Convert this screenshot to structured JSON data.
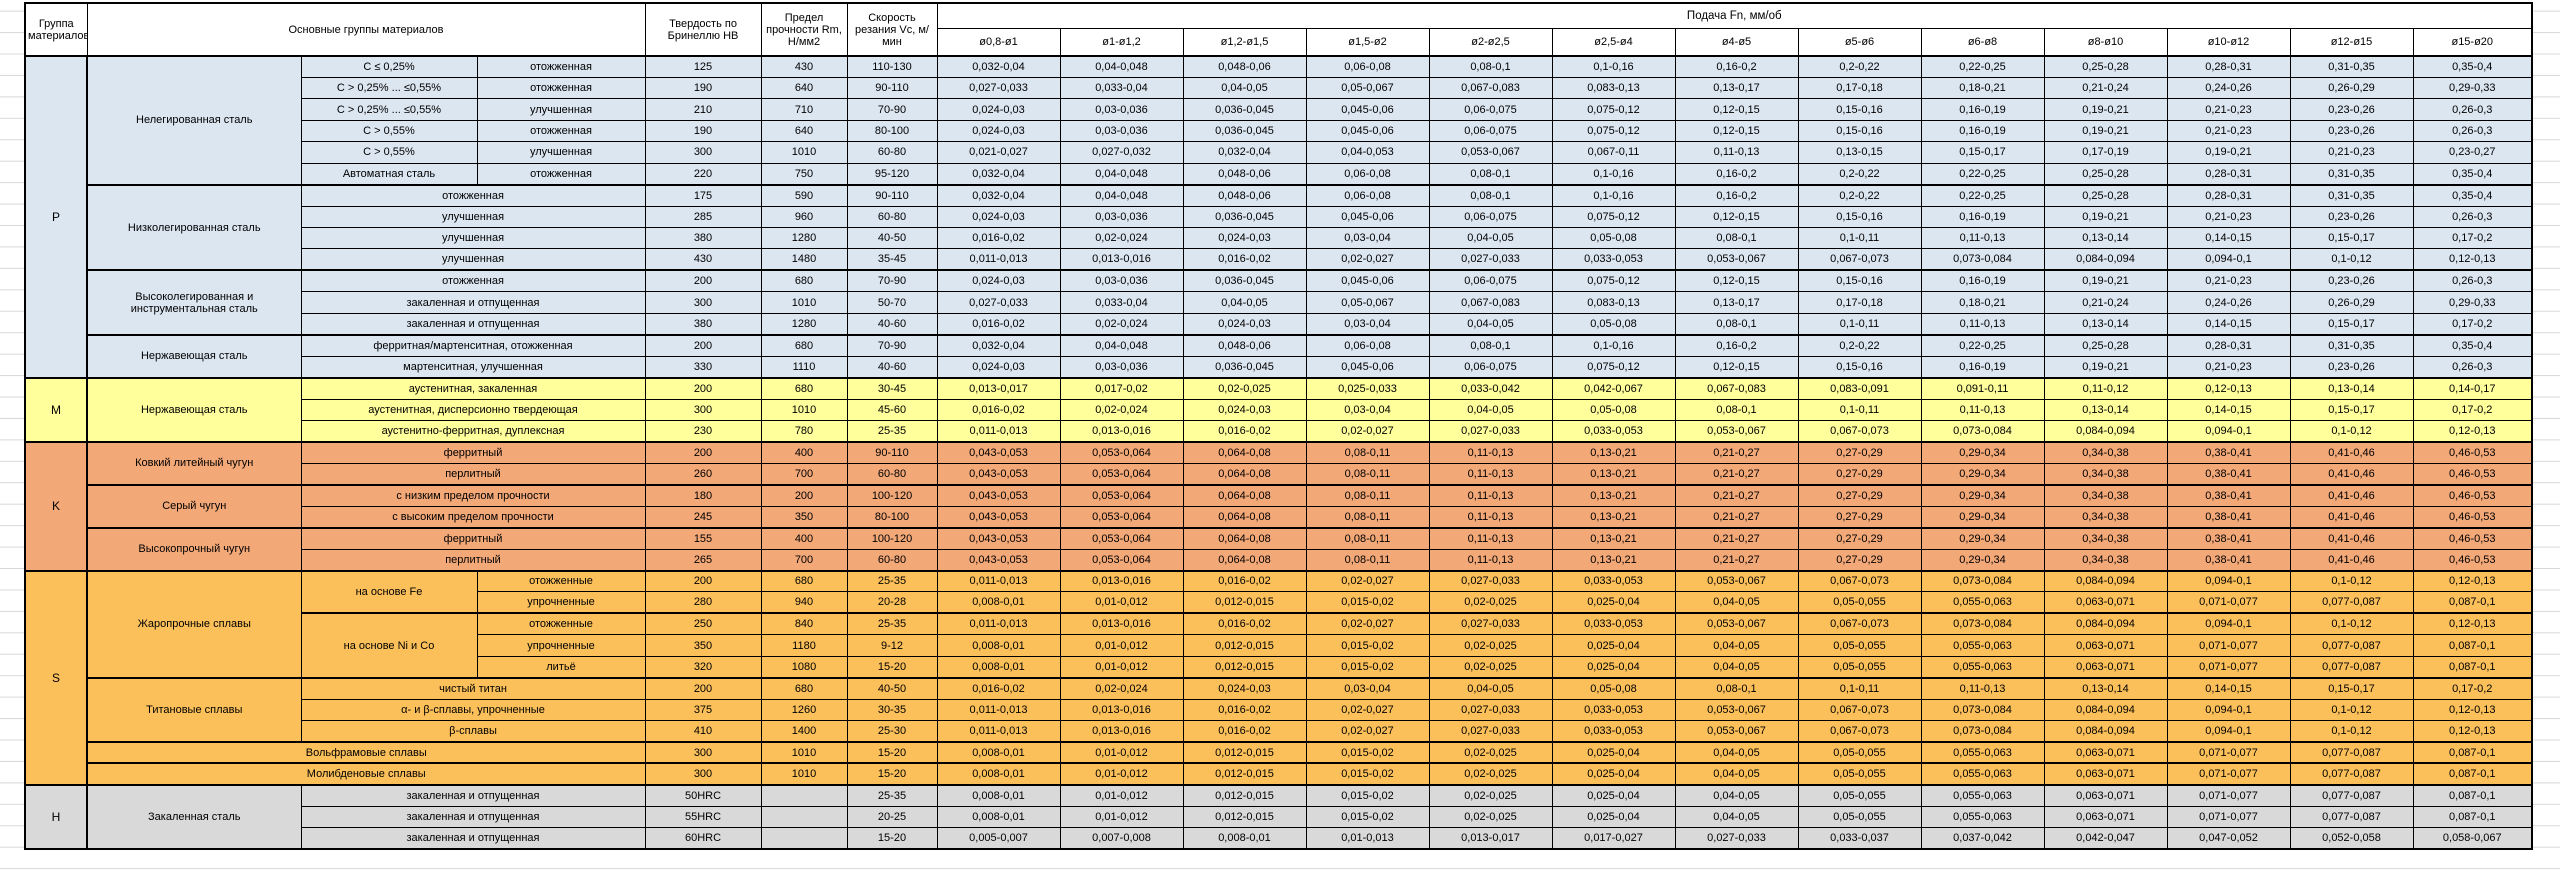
{
  "header": {
    "col_group": "Группа материалов",
    "col_main": "Основные группы материалов",
    "col_hb": "Твердость по Бринеллю HB",
    "col_rm": "Предел прочности Rm, Н/мм2",
    "col_vc": "Скорость резания Vc, м/мин",
    "feed_title": "Подача Fn, мм/об",
    "feed_cols": [
      "ø0,8-ø1",
      "ø1-ø1,2",
      "ø1,2-ø1,5",
      "ø1,5-ø2",
      "ø2-ø2,5",
      "ø2,5-ø4",
      "ø4-ø5",
      "ø5-ø6",
      "ø6-ø8",
      "ø8-ø10",
      "ø10-ø12",
      "ø12-ø15",
      "ø15-ø20"
    ]
  },
  "colors": {
    "section_p": "#dce6f1",
    "section_m": "#ffff9c",
    "section_k": "#f3a878",
    "section_s": "#fcc05b",
    "section_h": "#d9d9d9",
    "border": "#000000",
    "gridline": "#d8d8d8"
  },
  "feed_types": {
    "A": [
      "0,032-0,04",
      "0,04-0,048",
      "0,048-0,06",
      "0,06-0,08",
      "0,08-0,1",
      "0,1-0,16",
      "0,16-0,2",
      "0,2-0,22",
      "0,22-0,25",
      "0,25-0,28",
      "0,28-0,31",
      "0,31-0,35",
      "0,35-0,4"
    ],
    "B": [
      "0,027-0,033",
      "0,033-0,04",
      "0,04-0,05",
      "0,05-0,067",
      "0,067-0,083",
      "0,083-0,13",
      "0,13-0,17",
      "0,17-0,18",
      "0,18-0,21",
      "0,21-0,24",
      "0,24-0,26",
      "0,26-0,29",
      "0,29-0,33"
    ],
    "C": [
      "0,024-0,03",
      "0,03-0,036",
      "0,036-0,045",
      "0,045-0,06",
      "0,06-0,075",
      "0,075-0,12",
      "0,12-0,15",
      "0,15-0,16",
      "0,16-0,19",
      "0,19-0,21",
      "0,21-0,23",
      "0,23-0,26",
      "0,26-0,3"
    ],
    "D": [
      "0,021-0,027",
      "0,027-0,032",
      "0,032-0,04",
      "0,04-0,053",
      "0,053-0,067",
      "0,067-0,11",
      "0,11-0,13",
      "0,13-0,15",
      "0,15-0,17",
      "0,17-0,19",
      "0,19-0,21",
      "0,21-0,23",
      "0,23-0,27"
    ],
    "E": [
      "0,016-0,02",
      "0,02-0,024",
      "0,024-0,03",
      "0,03-0,04",
      "0,04-0,05",
      "0,05-0,08",
      "0,08-0,1",
      "0,1-0,11",
      "0,11-0,13",
      "0,13-0,14",
      "0,14-0,15",
      "0,15-0,17",
      "0,17-0,2"
    ],
    "F": [
      "0,011-0,013",
      "0,013-0,016",
      "0,016-0,02",
      "0,02-0,027",
      "0,027-0,033",
      "0,033-0,053",
      "0,053-0,067",
      "0,067-0,073",
      "0,073-0,084",
      "0,084-0,094",
      "0,094-0,1",
      "0,1-0,12",
      "0,12-0,13"
    ],
    "G": [
      "0,013-0,017",
      "0,017-0,02",
      "0,02-0,025",
      "0,025-0,033",
      "0,033-0,042",
      "0,042-0,067",
      "0,067-0,083",
      "0,083-0,091",
      "0,091-0,11",
      "0,11-0,12",
      "0,12-0,13",
      "0,13-0,14",
      "0,14-0,17"
    ],
    "H": [
      "0,043-0,053",
      "0,053-0,064",
      "0,064-0,08",
      "0,08-0,11",
      "0,11-0,13",
      "0,13-0,21",
      "0,21-0,27",
      "0,27-0,29",
      "0,29-0,34",
      "0,34-0,38",
      "0,38-0,41",
      "0,41-0,46",
      "0,46-0,53"
    ],
    "I": [
      "0,008-0,01",
      "0,01-0,012",
      "0,012-0,015",
      "0,015-0,02",
      "0,02-0,025",
      "0,025-0,04",
      "0,04-0,05",
      "0,05-0,055",
      "0,055-0,063",
      "0,063-0,071",
      "0,071-0,077",
      "0,077-0,087",
      "0,087-0,1"
    ],
    "J": [
      "0,005-0,007",
      "0,007-0,008",
      "0,008-0,01",
      "0,01-0,013",
      "0,013-0,017",
      "0,017-0,027",
      "0,027-0,033",
      "0,033-0,037",
      "0,037-0,042",
      "0,042-0,047",
      "0,047-0,052",
      "0,052-0,058",
      "0,058-0,067"
    ]
  },
  "rows": [
    {
      "sec": "p",
      "hb": "125",
      "rm": "430",
      "vc": "110-130",
      "feed": "A",
      "cells": [
        {
          "t": "P",
          "rs": 15,
          "name": "group-label-p",
          "cls": "gcol"
        },
        {
          "t": "Нелегированная сталь",
          "rs": 6
        },
        {
          "t": "C ≤ 0,25%"
        },
        {
          "t": "отожженная"
        }
      ]
    },
    {
      "sec": "p",
      "hb": "190",
      "rm": "640",
      "vc": "90-110",
      "feed": "B",
      "cells": [
        {
          "t": "C > 0,25% ... ≤0,55%"
        },
        {
          "t": "отожженная"
        }
      ]
    },
    {
      "sec": "p",
      "hb": "210",
      "rm": "710",
      "vc": "70-90",
      "feed": "C",
      "cells": [
        {
          "t": "C > 0,25% ... ≤0,55%"
        },
        {
          "t": "улучшенная"
        }
      ]
    },
    {
      "sec": "p",
      "hb": "190",
      "rm": "640",
      "vc": "80-100",
      "feed": "C",
      "cells": [
        {
          "t": "C > 0,55%"
        },
        {
          "t": "отожженная"
        }
      ]
    },
    {
      "sec": "p",
      "hb": "300",
      "rm": "1010",
      "vc": "60-80",
      "feed": "D",
      "cells": [
        {
          "t": "C > 0,55%"
        },
        {
          "t": "улучшенная"
        }
      ]
    },
    {
      "sec": "p",
      "bb": 1,
      "hb": "220",
      "rm": "750",
      "vc": "95-120",
      "feed": "A",
      "cells": [
        {
          "t": "Автоматная сталь"
        },
        {
          "t": "отожженная"
        }
      ]
    },
    {
      "sec": "p",
      "bt": 1,
      "hb": "175",
      "rm": "590",
      "vc": "90-110",
      "feed": "A",
      "cells": [
        {
          "t": "Низколегированная сталь",
          "rs": 4
        },
        {
          "t": "отожженная",
          "cs": 2
        }
      ]
    },
    {
      "sec": "p",
      "hb": "285",
      "rm": "960",
      "vc": "60-80",
      "feed": "C",
      "cells": [
        {
          "t": "улучшенная",
          "cs": 2
        }
      ]
    },
    {
      "sec": "p",
      "hb": "380",
      "rm": "1280",
      "vc": "40-50",
      "feed": "E",
      "cells": [
        {
          "t": "улучшенная",
          "cs": 2
        }
      ]
    },
    {
      "sec": "p",
      "bb": 1,
      "hb": "430",
      "rm": "1480",
      "vc": "35-45",
      "feed": "F",
      "cells": [
        {
          "t": "улучшенная",
          "cs": 2
        }
      ]
    },
    {
      "sec": "p",
      "bt": 1,
      "hb": "200",
      "rm": "680",
      "vc": "70-90",
      "feed": "C",
      "cells": [
        {
          "t": "Высоколегированная и инструментальная сталь",
          "rs": 3
        },
        {
          "t": "отожженная",
          "cs": 2
        }
      ]
    },
    {
      "sec": "p",
      "hb": "300",
      "rm": "1010",
      "vc": "50-70",
      "feed": "B",
      "cells": [
        {
          "t": "закаленная и отпущенная",
          "cs": 2
        }
      ]
    },
    {
      "sec": "p",
      "bb": 1,
      "hb": "380",
      "rm": "1280",
      "vc": "40-60",
      "feed": "E",
      "cells": [
        {
          "t": "закаленная и отпущенная",
          "cs": 2
        }
      ]
    },
    {
      "sec": "p",
      "bt": 1,
      "hb": "200",
      "rm": "680",
      "vc": "70-90",
      "feed": "A",
      "cells": [
        {
          "t": "Нержавеющая сталь",
          "rs": 2
        },
        {
          "t": "ферритная/мартенситная, отожженная",
          "cs": 2
        }
      ]
    },
    {
      "sec": "p",
      "bb": 1,
      "hb": "330",
      "rm": "1110",
      "vc": "40-60",
      "feed": "C",
      "cells": [
        {
          "t": "мартенситная, улучшенная",
          "cs": 2
        }
      ]
    },
    {
      "sec": "m",
      "bt": 1,
      "hb": "200",
      "rm": "680",
      "vc": "30-45",
      "feed": "G",
      "cells": [
        {
          "t": "M",
          "rs": 3,
          "name": "group-label-m",
          "cls": "gcol"
        },
        {
          "t": "Нержавеющая сталь",
          "rs": 3
        },
        {
          "t": "аустенитная, закаленная",
          "cs": 2
        }
      ]
    },
    {
      "sec": "m",
      "hb": "300",
      "rm": "1010",
      "vc": "45-60",
      "feed": "E",
      "cells": [
        {
          "t": "аустенитная, дисперсионно твердеющая",
          "cs": 2
        }
      ]
    },
    {
      "sec": "m",
      "bb": 1,
      "hb": "230",
      "rm": "780",
      "vc": "25-35",
      "feed": "F",
      "cells": [
        {
          "t": "аустенитно-ферритная, дуплексная",
          "cs": 2
        }
      ]
    },
    {
      "sec": "k",
      "bt": 1,
      "hb": "200",
      "rm": "400",
      "vc": "90-110",
      "feed": "H",
      "cells": [
        {
          "t": "K",
          "rs": 6,
          "name": "group-label-k",
          "cls": "gcol"
        },
        {
          "t": "Ковкий литейный чугун",
          "rs": 2
        },
        {
          "t": "ферритный",
          "cs": 2
        }
      ]
    },
    {
      "sec": "k",
      "bb": 1,
      "hb": "260",
      "rm": "700",
      "vc": "60-80",
      "feed": "H",
      "cells": [
        {
          "t": "перлитный",
          "cs": 2
        }
      ]
    },
    {
      "sec": "k",
      "bt": 1,
      "hb": "180",
      "rm": "200",
      "vc": "100-120",
      "feed": "H",
      "cells": [
        {
          "t": "Серый чугун",
          "rs": 2
        },
        {
          "t": "с низким пределом прочности",
          "cs": 2
        }
      ]
    },
    {
      "sec": "k",
      "bb": 1,
      "hb": "245",
      "rm": "350",
      "vc": "80-100",
      "feed": "H",
      "cells": [
        {
          "t": "с высоким пределом прочности",
          "cs": 2
        }
      ]
    },
    {
      "sec": "k",
      "bt": 1,
      "hb": "155",
      "rm": "400",
      "vc": "100-120",
      "feed": "H",
      "cells": [
        {
          "t": "Высокопрочный чугун",
          "rs": 2
        },
        {
          "t": "ферритный",
          "cs": 2
        }
      ]
    },
    {
      "sec": "k",
      "bb": 1,
      "hb": "265",
      "rm": "700",
      "vc": "60-80",
      "feed": "H",
      "cells": [
        {
          "t": "перлитный",
          "cs": 2
        }
      ]
    },
    {
      "sec": "s",
      "bt": 1,
      "hb": "200",
      "rm": "680",
      "vc": "25-35",
      "feed": "F",
      "cells": [
        {
          "t": "S",
          "rs": 10,
          "name": "group-label-s",
          "cls": "gcol"
        },
        {
          "t": "Жаропрочные сплавы",
          "rs": 5
        },
        {
          "t": "на основе Fe",
          "rs": 2
        },
        {
          "t": "отожженные"
        }
      ]
    },
    {
      "sec": "s",
      "bb": 1,
      "hb": "280",
      "rm": "940",
      "vc": "20-28",
      "feed": "I",
      "cells": [
        {
          "t": "упрочненные"
        }
      ]
    },
    {
      "sec": "s",
      "bt": 1,
      "hb": "250",
      "rm": "840",
      "vc": "25-35",
      "feed": "F",
      "cells": [
        {
          "t": "на основе Ni и Co",
          "rs": 3
        },
        {
          "t": "отожженные"
        }
      ]
    },
    {
      "sec": "s",
      "hb": "350",
      "rm": "1180",
      "vc": "9-12",
      "feed": "I",
      "cells": [
        {
          "t": "упрочненные"
        }
      ]
    },
    {
      "sec": "s",
      "bb": 1,
      "hb": "320",
      "rm": "1080",
      "vc": "15-20",
      "feed": "I",
      "cells": [
        {
          "t": "литьё"
        }
      ]
    },
    {
      "sec": "s",
      "bt": 1,
      "hb": "200",
      "rm": "680",
      "vc": "40-50",
      "feed": "E",
      "cells": [
        {
          "t": "Титановые сплавы",
          "rs": 3
        },
        {
          "t": "чистый титан",
          "cs": 2
        }
      ]
    },
    {
      "sec": "s",
      "hb": "375",
      "rm": "1260",
      "vc": "30-35",
      "feed": "F",
      "cells": [
        {
          "t": "α- и β-сплавы, упрочненные",
          "cs": 2
        }
      ]
    },
    {
      "sec": "s",
      "bb": 1,
      "hb": "410",
      "rm": "1400",
      "vc": "25-30",
      "feed": "F",
      "cells": [
        {
          "t": "β-сплавы",
          "cs": 2
        }
      ]
    },
    {
      "sec": "s",
      "bt": 1,
      "bb": 1,
      "hb": "300",
      "rm": "1010",
      "vc": "15-20",
      "feed": "I",
      "cells": [
        {
          "t": "Вольфрамовые сплавы",
          "cs": 3
        }
      ]
    },
    {
      "sec": "s",
      "bt": 1,
      "bb": 1,
      "hb": "300",
      "rm": "1010",
      "vc": "15-20",
      "feed": "I",
      "cells": [
        {
          "t": "Молибденовые сплавы",
          "cs": 3
        }
      ]
    },
    {
      "sec": "h",
      "bt": 1,
      "hb": "50HRC",
      "rm": "",
      "vc": "25-35",
      "feed": "I",
      "cells": [
        {
          "t": "H",
          "rs": 3,
          "name": "group-label-h",
          "cls": "gcol"
        },
        {
          "t": "Закаленная сталь",
          "rs": 3
        },
        {
          "t": "закаленная и отпущенная",
          "cs": 2
        }
      ]
    },
    {
      "sec": "h",
      "hb": "55HRC",
      "rm": "",
      "vc": "20-25",
      "feed": "I",
      "cells": [
        {
          "t": "закаленная и отпущенная",
          "cs": 2
        }
      ]
    },
    {
      "sec": "h",
      "bb": 1,
      "hb": "60HRC",
      "rm": "",
      "vc": "15-20",
      "feed": "J",
      "cells": [
        {
          "t": "закаленная и отпущенная",
          "cs": 2
        }
      ]
    }
  ]
}
